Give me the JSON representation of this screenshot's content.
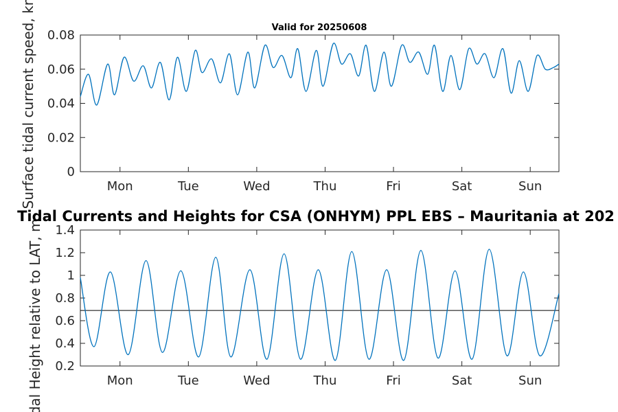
{
  "chart_data": [
    {
      "type": "line",
      "title": "Valid for 20250608",
      "xlabel": "",
      "ylabel": "Surface tidal current speed, kn",
      "categories": [
        "Mon",
        "Tue",
        "Wed",
        "Thu",
        "Fri",
        "Sat",
        "Sun"
      ],
      "xlim": [
        0,
        7
      ],
      "ylim": [
        0,
        0.08
      ],
      "y_ticks": [
        "0",
        "0.02",
        "0.04",
        "0.06",
        "0.08"
      ],
      "grid": false,
      "series": [
        {
          "name": "",
          "x": [
            0,
            0.12,
            0.24,
            0.4,
            0.5,
            0.64,
            0.78,
            0.92,
            1.04,
            1.17,
            1.3,
            1.42,
            1.55,
            1.68,
            1.78,
            1.92,
            2.05,
            2.18,
            2.3,
            2.45,
            2.55,
            2.7,
            2.82,
            2.95,
            3.08,
            3.18,
            3.3,
            3.45,
            3.55,
            3.7,
            3.82,
            3.95,
            4.07,
            4.18,
            4.3,
            4.44,
            4.55,
            4.7,
            4.82,
            4.95,
            5.08,
            5.18,
            5.3,
            5.42,
            5.55,
            5.68,
            5.8,
            5.92,
            6.05,
            6.18,
            6.3,
            6.42,
            6.55,
            6.68,
            6.8,
            6.92,
            7.0
          ],
          "values": [
            0.044,
            0.057,
            0.039,
            0.063,
            0.045,
            0.067,
            0.053,
            0.062,
            0.049,
            0.064,
            0.042,
            0.067,
            0.047,
            0.071,
            0.058,
            0.066,
            0.052,
            0.069,
            0.045,
            0.07,
            0.049,
            0.074,
            0.061,
            0.068,
            0.055,
            0.072,
            0.047,
            0.071,
            0.05,
            0.075,
            0.063,
            0.069,
            0.056,
            0.074,
            0.047,
            0.07,
            0.05,
            0.074,
            0.064,
            0.07,
            0.057,
            0.074,
            0.047,
            0.068,
            0.048,
            0.072,
            0.063,
            0.069,
            0.055,
            0.072,
            0.046,
            0.065,
            0.047,
            0.068,
            0.06,
            0.061,
            0.063
          ]
        }
      ]
    },
    {
      "type": "line",
      "title": "Tidal Currents and Heights for CSA (ONHYM) PPL EBS  – Mauritania at 202",
      "xlabel": "",
      "ylabel": "Tidal Height relative to LAT, m",
      "categories": [
        "Mon",
        "Tue",
        "Wed",
        "Thu",
        "Fri",
        "Sat",
        "Sun"
      ],
      "xlim": [
        0,
        7
      ],
      "ylim": [
        0.2,
        1.4
      ],
      "y_ticks": [
        "0.2",
        "0.4",
        "0.6",
        "0.8",
        "1",
        "1.2",
        "1.4"
      ],
      "grid": false,
      "reference_line": 0.69,
      "series": [
        {
          "name": "",
          "x": [
            0,
            0.2,
            0.44,
            0.7,
            0.96,
            1.2,
            1.47,
            1.73,
            1.98,
            2.2,
            2.48,
            2.73,
            2.98,
            3.22,
            3.48,
            3.73,
            3.97,
            4.22,
            4.48,
            4.73,
            4.98,
            5.23,
            5.48,
            5.73,
            5.98,
            6.24,
            6.48,
            6.72,
            7.0
          ],
          "values": [
            0.98,
            0.37,
            1.03,
            0.3,
            1.13,
            0.32,
            1.04,
            0.28,
            1.16,
            0.28,
            1.05,
            0.26,
            1.19,
            0.26,
            1.05,
            0.25,
            1.21,
            0.26,
            1.05,
            0.25,
            1.22,
            0.27,
            1.04,
            0.26,
            1.23,
            0.29,
            1.03,
            0.29,
            0.84
          ]
        }
      ]
    }
  ]
}
